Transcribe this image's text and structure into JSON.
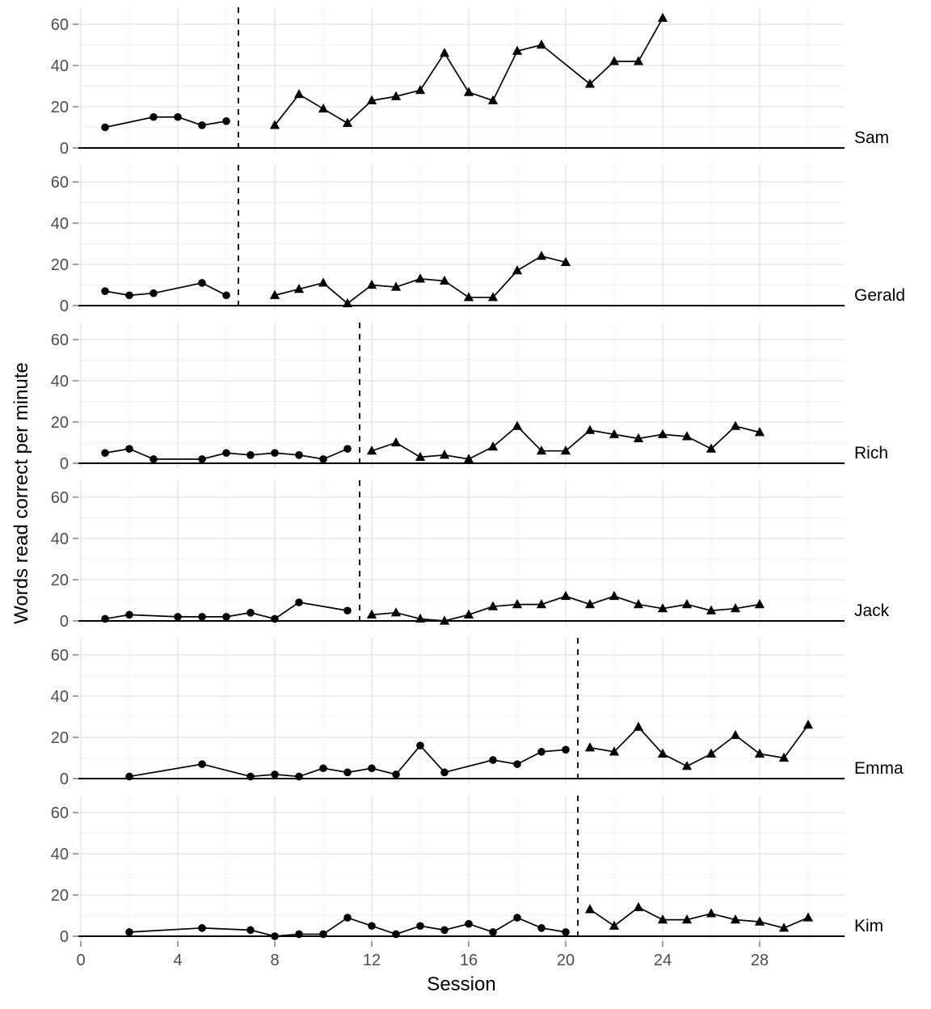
{
  "chart_data": {
    "type": "line",
    "title": "",
    "xlabel": "Session",
    "ylabel": "Words read correct per minute",
    "x_ticks": [
      0,
      4,
      8,
      12,
      16,
      20,
      24,
      28
    ],
    "y_ticks": [
      0,
      20,
      40,
      60
    ],
    "x_minor_gridline_step": 2,
    "y_minor_gridline_step": 10,
    "xlim": [
      -0.1,
      31.5
    ],
    "ylim": [
      -2.4,
      68.2
    ],
    "grid": true,
    "legend_position": "none",
    "marker_semantics": {
      "baseline": "circle",
      "intervention": "triangle"
    },
    "colors": {
      "background": "#ffffff",
      "grid_major": "#e3e3e3",
      "grid_minor": "#f1f1f1",
      "axis_line": "#000000",
      "phase_line": "#000000",
      "series": "#000000",
      "tick_label": "#4d4d4d",
      "panel_label": "#000000",
      "axis_title": "#000000"
    },
    "panels": [
      {
        "name": "Sam",
        "phase_change_x": 6.5,
        "baseline": {
          "marker": "circle",
          "points": [
            [
              1,
              10
            ],
            [
              3,
              15
            ],
            [
              4,
              15
            ],
            [
              5,
              11
            ],
            [
              6,
              13
            ]
          ]
        },
        "intervention": {
          "marker": "triangle",
          "points": [
            [
              8,
              11
            ],
            [
              9,
              26
            ],
            [
              10,
              19
            ],
            [
              11,
              12
            ],
            [
              12,
              23
            ],
            [
              13,
              25
            ],
            [
              14,
              28
            ],
            [
              15,
              46
            ],
            [
              16,
              27
            ],
            [
              17,
              23
            ],
            [
              18,
              47
            ],
            [
              19,
              50
            ],
            [
              21,
              31
            ],
            [
              22,
              42
            ],
            [
              23,
              42
            ],
            [
              24,
              63
            ]
          ]
        }
      },
      {
        "name": "Gerald",
        "phase_change_x": 6.5,
        "baseline": {
          "marker": "circle",
          "points": [
            [
              1,
              7
            ],
            [
              2,
              5
            ],
            [
              3,
              6
            ],
            [
              5,
              11
            ],
            [
              6,
              5
            ]
          ]
        },
        "intervention": {
          "marker": "triangle",
          "points": [
            [
              8,
              5
            ],
            [
              9,
              8
            ],
            [
              10,
              11
            ],
            [
              11,
              1
            ],
            [
              12,
              10
            ],
            [
              13,
              9
            ],
            [
              14,
              13
            ],
            [
              15,
              12
            ],
            [
              16,
              4
            ],
            [
              17,
              4
            ],
            [
              18,
              17
            ],
            [
              19,
              24
            ],
            [
              20,
              21
            ]
          ]
        }
      },
      {
        "name": "Rich",
        "phase_change_x": 11.5,
        "baseline": {
          "marker": "circle",
          "points": [
            [
              1,
              5
            ],
            [
              2,
              7
            ],
            [
              3,
              2
            ],
            [
              5,
              2
            ],
            [
              6,
              5
            ],
            [
              7,
              4
            ],
            [
              8,
              5
            ],
            [
              9,
              4
            ],
            [
              10,
              2
            ],
            [
              11,
              7
            ]
          ]
        },
        "intervention": {
          "marker": "triangle",
          "points": [
            [
              12,
              6
            ],
            [
              13,
              10
            ],
            [
              14,
              3
            ],
            [
              15,
              4
            ],
            [
              16,
              2
            ],
            [
              17,
              8
            ],
            [
              18,
              18
            ],
            [
              19,
              6
            ],
            [
              20,
              6
            ],
            [
              21,
              16
            ],
            [
              22,
              14
            ],
            [
              23,
              12
            ],
            [
              24,
              14
            ],
            [
              25,
              13
            ],
            [
              26,
              7
            ],
            [
              27,
              18
            ],
            [
              28,
              15
            ]
          ]
        }
      },
      {
        "name": "Jack",
        "phase_change_x": 11.5,
        "baseline": {
          "marker": "circle",
          "points": [
            [
              1,
              1
            ],
            [
              2,
              3
            ],
            [
              4,
              2
            ],
            [
              5,
              2
            ],
            [
              6,
              2
            ],
            [
              7,
              4
            ],
            [
              8,
              1
            ],
            [
              9,
              9
            ],
            [
              11,
              5
            ]
          ]
        },
        "intervention": {
          "marker": "triangle",
          "points": [
            [
              12,
              3
            ],
            [
              13,
              4
            ],
            [
              14,
              1
            ],
            [
              15,
              0
            ],
            [
              16,
              3
            ],
            [
              17,
              7
            ],
            [
              18,
              8
            ],
            [
              19,
              8
            ],
            [
              20,
              12
            ],
            [
              21,
              8
            ],
            [
              22,
              12
            ],
            [
              23,
              8
            ],
            [
              24,
              6
            ],
            [
              25,
              8
            ],
            [
              26,
              5
            ],
            [
              27,
              6
            ],
            [
              28,
              8
            ]
          ]
        }
      },
      {
        "name": "Emma",
        "phase_change_x": 20.5,
        "baseline": {
          "marker": "circle",
          "points": [
            [
              2,
              1
            ],
            [
              5,
              7
            ],
            [
              7,
              1
            ],
            [
              8,
              2
            ],
            [
              9,
              1
            ],
            [
              10,
              5
            ],
            [
              11,
              3
            ],
            [
              12,
              5
            ],
            [
              13,
              2
            ],
            [
              14,
              16
            ],
            [
              15,
              3
            ],
            [
              17,
              9
            ],
            [
              18,
              7
            ],
            [
              19,
              13
            ],
            [
              20,
              14
            ]
          ]
        },
        "intervention": {
          "marker": "triangle",
          "points": [
            [
              21,
              15
            ],
            [
              22,
              13
            ],
            [
              23,
              25
            ],
            [
              24,
              12
            ],
            [
              25,
              6
            ],
            [
              26,
              12
            ],
            [
              27,
              21
            ],
            [
              28,
              12
            ],
            [
              29,
              10
            ],
            [
              30,
              26
            ]
          ]
        }
      },
      {
        "name": "Kim",
        "phase_change_x": 20.5,
        "baseline": {
          "marker": "circle",
          "points": [
            [
              2,
              2
            ],
            [
              5,
              4
            ],
            [
              7,
              3
            ],
            [
              8,
              0
            ],
            [
              9,
              1
            ],
            [
              10,
              1
            ],
            [
              11,
              9
            ],
            [
              12,
              5
            ],
            [
              13,
              1
            ],
            [
              14,
              5
            ],
            [
              15,
              3
            ],
            [
              16,
              6
            ],
            [
              17,
              2
            ],
            [
              18,
              9
            ],
            [
              19,
              4
            ],
            [
              20,
              2
            ]
          ]
        },
        "intervention": {
          "marker": "triangle",
          "points": [
            [
              21,
              13
            ],
            [
              22,
              5
            ],
            [
              23,
              14
            ],
            [
              24,
              8
            ],
            [
              25,
              8
            ],
            [
              26,
              11
            ],
            [
              27,
              8
            ],
            [
              28,
              7
            ],
            [
              29,
              4
            ],
            [
              30,
              9
            ]
          ]
        }
      }
    ]
  }
}
